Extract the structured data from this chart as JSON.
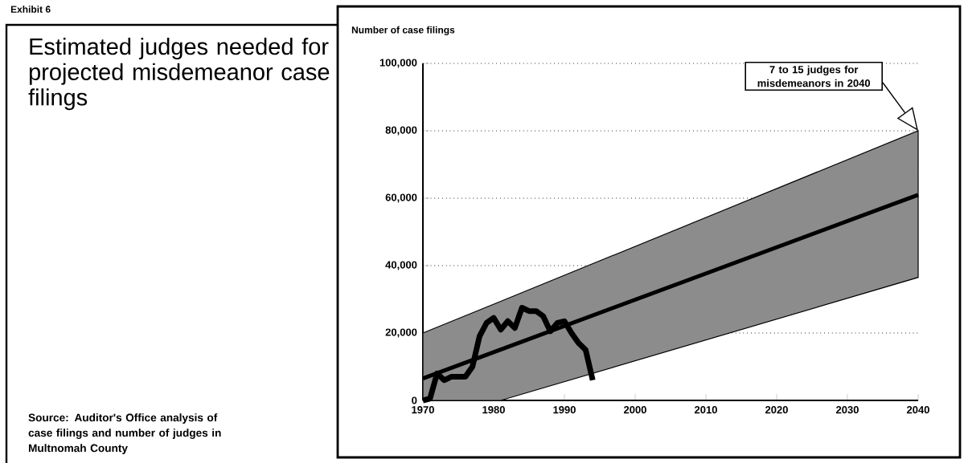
{
  "chart_data": {
    "type": "line",
    "title": "Estimated judges needed for projected misdemeanor case filings",
    "ylabel": "Number of case filings",
    "annotations": [
      "Exhibit 6",
      "7 to 15 judges for misdemeanors in 2040",
      "Source: Auditor's Office analysis of case filings and number of judges in Multnomah County"
    ],
    "series": [
      {
        "color": "#000000",
        "x": [
          1970,
          1981,
          2040
        ],
        "values": [
          6500,
          15100,
          61000
        ],
        "lower": [
          0,
          0,
          36500
        ],
        "upper": [
          20000,
          29400,
          80000
        ]
      },
      {
        "color": "#000000",
        "x": [
          1970,
          1971,
          1972,
          1973,
          1974,
          1975,
          1976,
          1977,
          1978,
          1979,
          1980,
          1981,
          1982,
          1983,
          1984,
          1985,
          1986,
          1987,
          1988,
          1989,
          1990,
          1991,
          1992,
          1993,
          1994
        ],
        "values": [
          0,
          500,
          8000,
          6000,
          7000,
          7000,
          7000,
          10000,
          19000,
          23000,
          24500,
          21000,
          23500,
          21500,
          27500,
          26500,
          26500,
          25000,
          20500,
          23000,
          23500,
          20000,
          17000,
          15000,
          6000
        ]
      }
    ],
    "xlim": [
      1970,
      2040
    ],
    "ylim": [
      0,
      100000
    ],
    "xticks": [
      1970,
      1980,
      1990,
      2000,
      2010,
      2020,
      2030,
      2040
    ],
    "yticks": [
      0,
      {
        "value": 20000,
        "label": "20,000"
      },
      {
        "value": 40000,
        "label": "40,000"
      },
      {
        "value": 60000,
        "label": "60,000"
      },
      {
        "value": 80000,
        "label": "80,000"
      },
      {
        "value": 100000,
        "label": "100,000"
      }
    ],
    "grid": "y"
  }
}
